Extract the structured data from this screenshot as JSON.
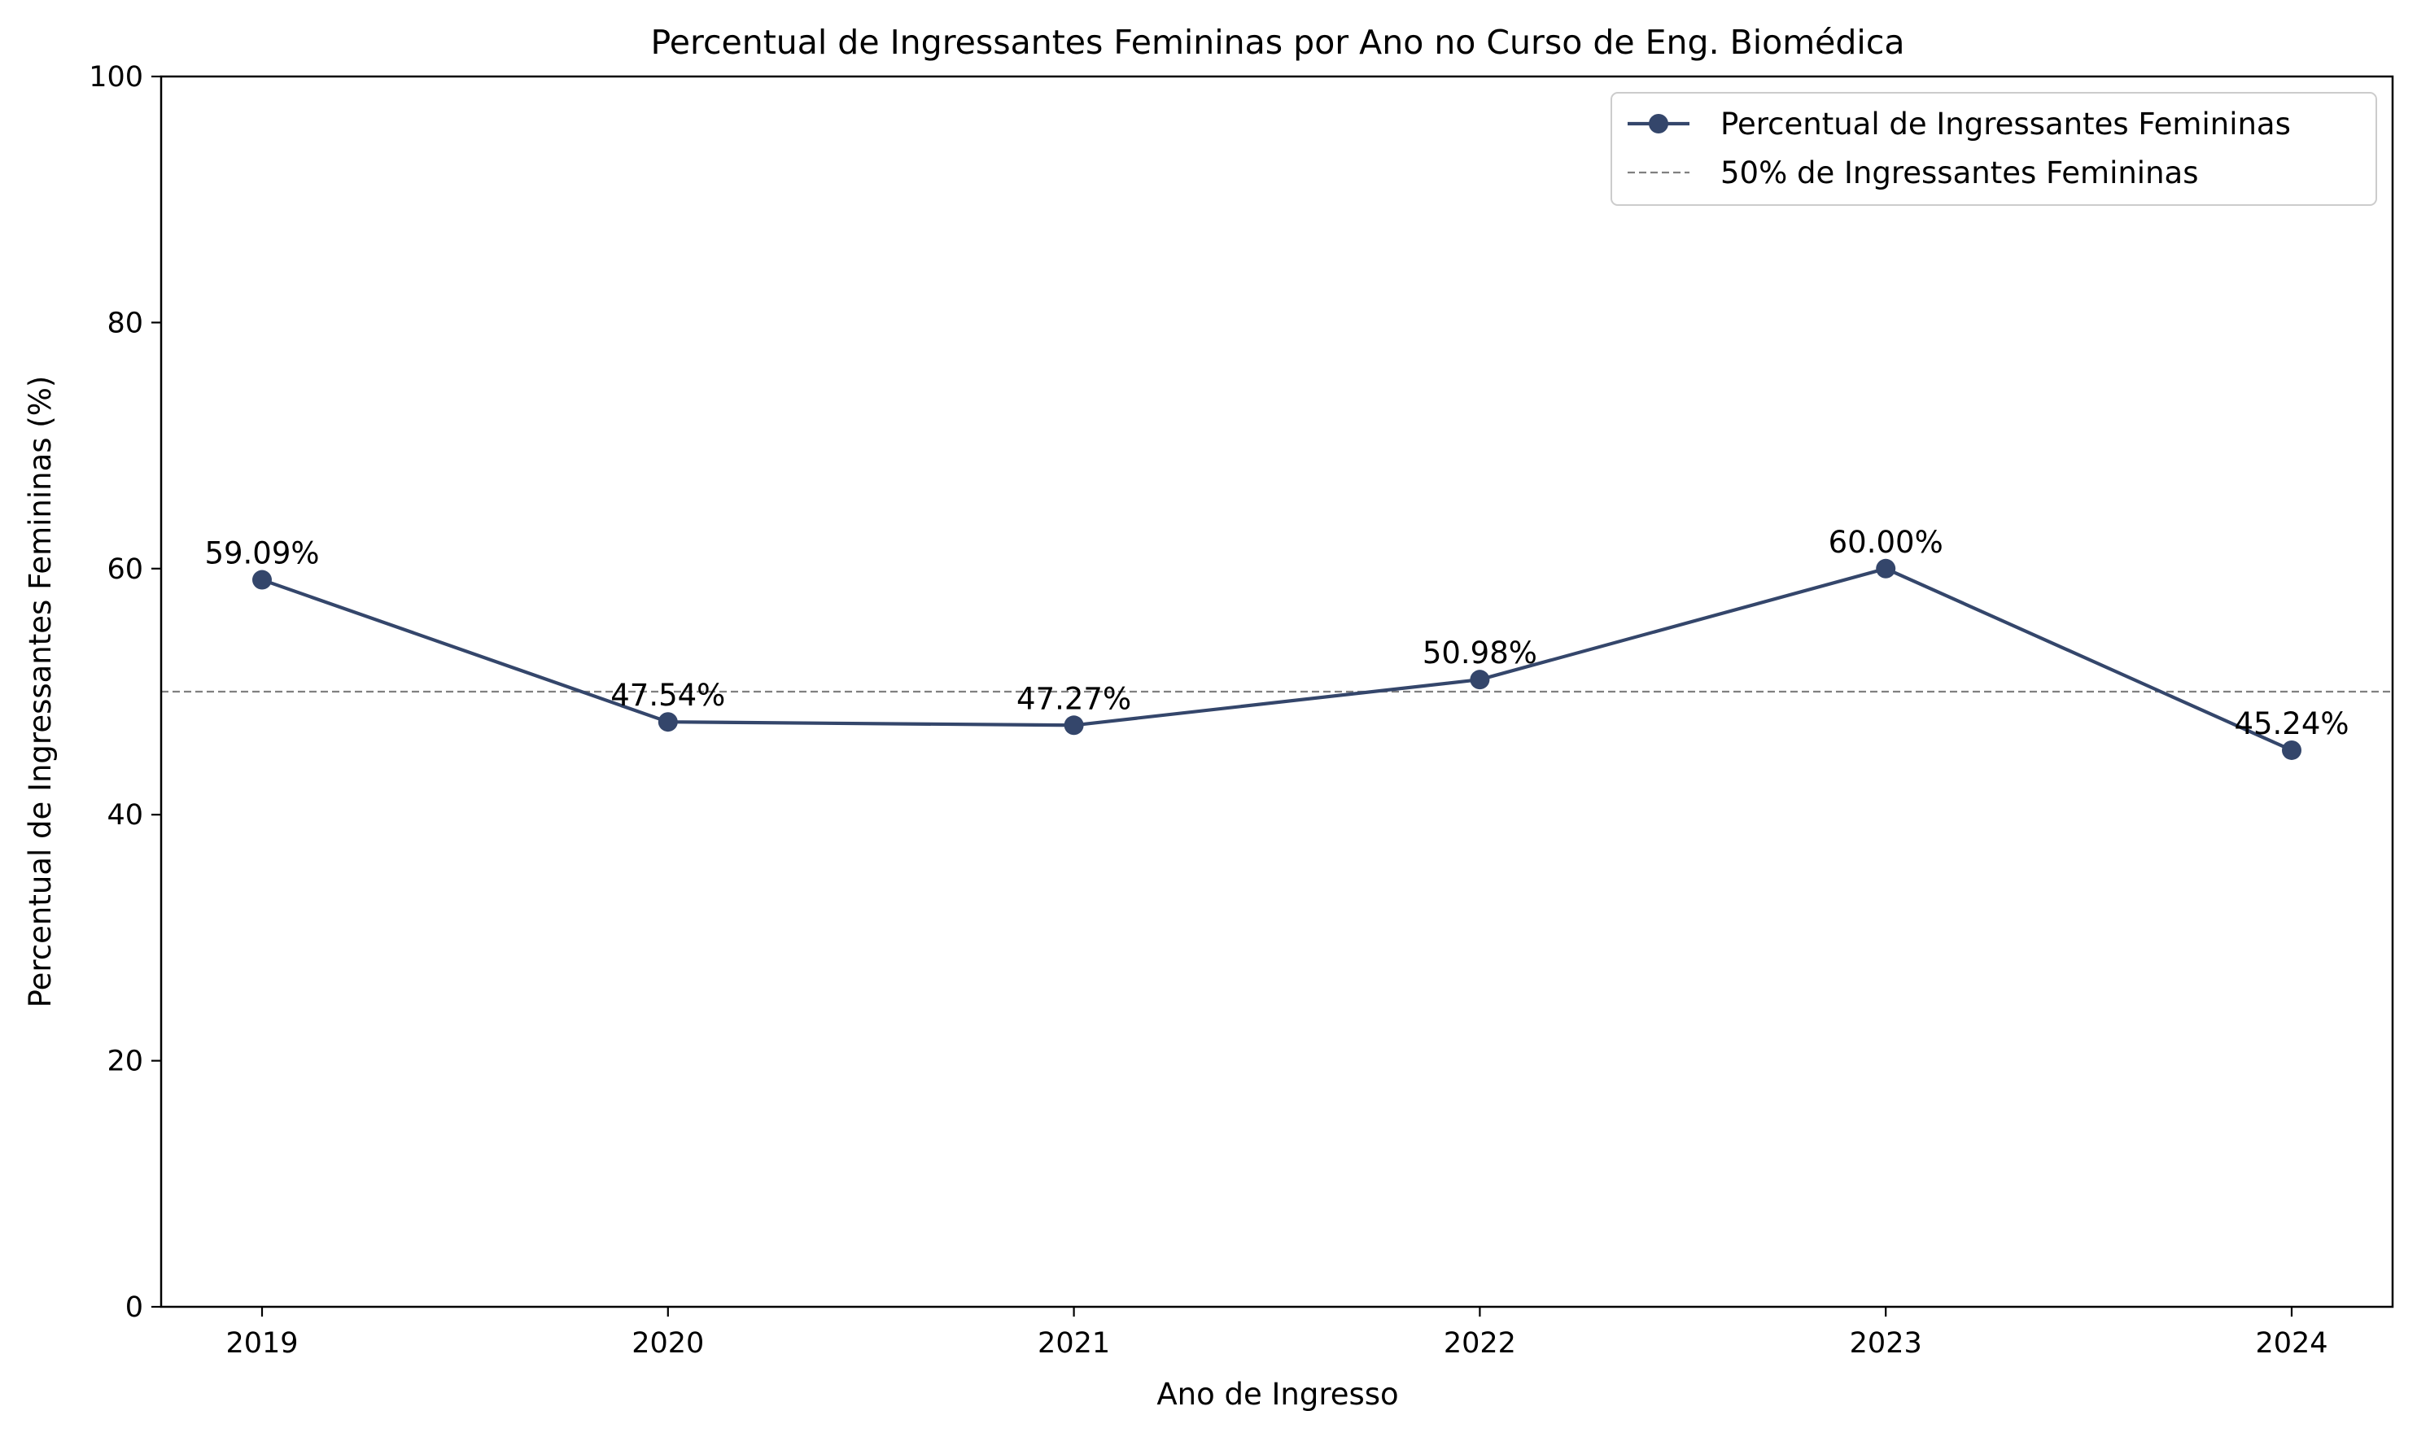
{
  "chart_data": {
    "type": "line",
    "title": "Percentual de Ingressantes Femininas por Ano no Curso de Eng. Biomédica",
    "xlabel": "Ano de Ingresso",
    "ylabel": "Percentual de Ingressantes Femininas (%)",
    "categories": [
      "2019",
      "2020",
      "2021",
      "2022",
      "2023",
      "2024"
    ],
    "ylim": [
      0,
      100
    ],
    "yticks": [
      0,
      20,
      40,
      60,
      80,
      100
    ],
    "grid": false,
    "legend_position": "top-right",
    "series": [
      {
        "name": "Percentual de Ingressantes Femininas",
        "values": [
          59.09,
          47.54,
          47.27,
          50.98,
          60.0,
          45.24
        ],
        "data_labels": [
          "59.09%",
          "47.54%",
          "47.27%",
          "50.98%",
          "60.00%",
          "45.24%"
        ],
        "color": "#34466b",
        "marker": "circle"
      }
    ],
    "reference_line": {
      "name": "50% de Ingressantes Femininas",
      "value": 50,
      "color": "#808080",
      "style": "dashed"
    }
  }
}
